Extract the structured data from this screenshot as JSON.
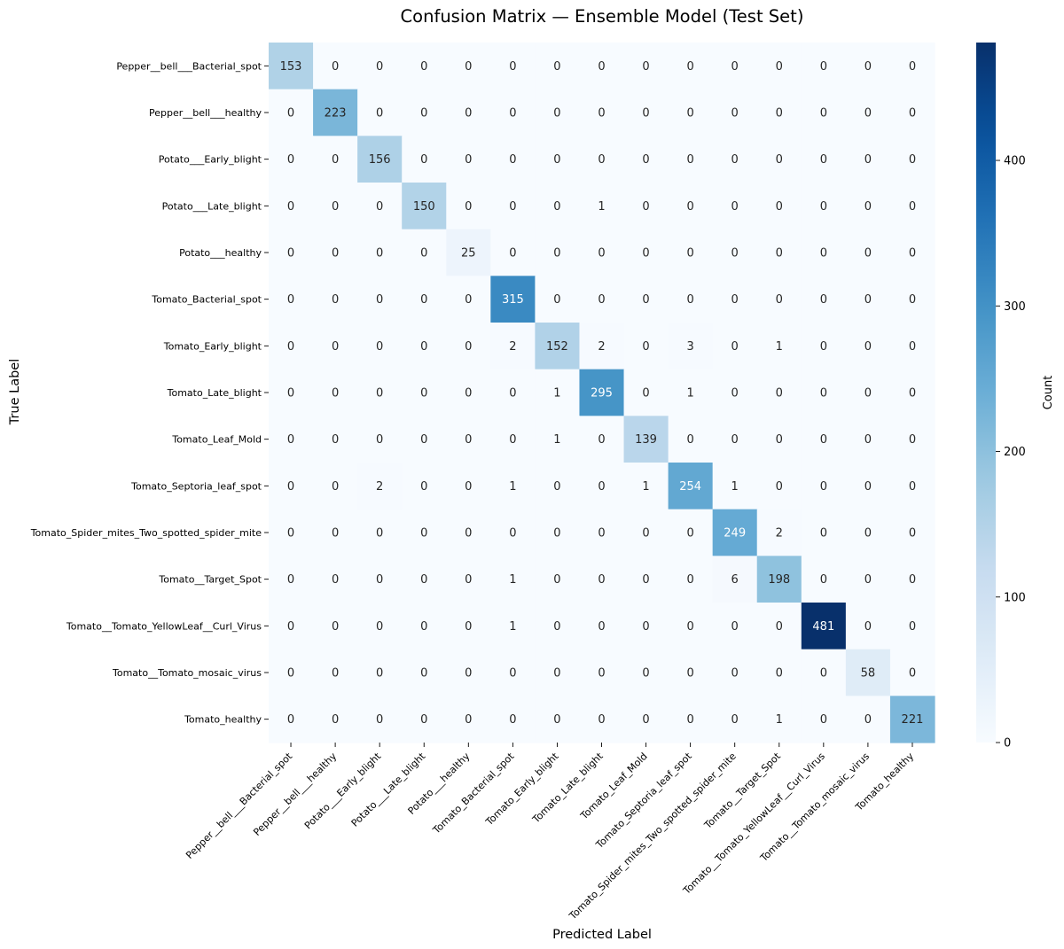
{
  "chart_data": {
    "type": "heatmap",
    "title": "Confusion Matrix — Ensemble Model (Test Set)",
    "xlabel": "Predicted Label",
    "ylabel": "True Label",
    "colorbar_label": "Count",
    "colormap": "Blues",
    "vmin": 0,
    "vmax": 481,
    "colorbar_ticks": [
      0,
      100,
      200,
      300,
      400
    ],
    "labels": [
      "Pepper__bell___Bacterial_spot",
      "Pepper__bell___healthy",
      "Potato___Early_blight",
      "Potato___Late_blight",
      "Potato___healthy",
      "Tomato_Bacterial_spot",
      "Tomato_Early_blight",
      "Tomato_Late_blight",
      "Tomato_Leaf_Mold",
      "Tomato_Septoria_leaf_spot",
      "Tomato_Spider_mites_Two_spotted_spider_mite",
      "Tomato__Target_Spot",
      "Tomato__Tomato_YellowLeaf__Curl_Virus",
      "Tomato__Tomato_mosaic_virus",
      "Tomato_healthy"
    ],
    "matrix": [
      [
        153,
        0,
        0,
        0,
        0,
        0,
        0,
        0,
        0,
        0,
        0,
        0,
        0,
        0,
        0
      ],
      [
        0,
        223,
        0,
        0,
        0,
        0,
        0,
        0,
        0,
        0,
        0,
        0,
        0,
        0,
        0
      ],
      [
        0,
        0,
        156,
        0,
        0,
        0,
        0,
        0,
        0,
        0,
        0,
        0,
        0,
        0,
        0
      ],
      [
        0,
        0,
        0,
        150,
        0,
        0,
        0,
        1,
        0,
        0,
        0,
        0,
        0,
        0,
        0
      ],
      [
        0,
        0,
        0,
        0,
        25,
        0,
        0,
        0,
        0,
        0,
        0,
        0,
        0,
        0,
        0
      ],
      [
        0,
        0,
        0,
        0,
        0,
        315,
        0,
        0,
        0,
        0,
        0,
        0,
        0,
        0,
        0
      ],
      [
        0,
        0,
        0,
        0,
        0,
        2,
        152,
        2,
        0,
        3,
        0,
        1,
        0,
        0,
        0
      ],
      [
        0,
        0,
        0,
        0,
        0,
        0,
        1,
        295,
        0,
        1,
        0,
        0,
        0,
        0,
        0
      ],
      [
        0,
        0,
        0,
        0,
        0,
        0,
        1,
        0,
        139,
        0,
        0,
        0,
        0,
        0,
        0
      ],
      [
        0,
        0,
        2,
        0,
        0,
        1,
        0,
        0,
        1,
        254,
        1,
        0,
        0,
        0,
        0
      ],
      [
        0,
        0,
        0,
        0,
        0,
        0,
        0,
        0,
        0,
        0,
        249,
        2,
        0,
        0,
        0
      ],
      [
        0,
        0,
        0,
        0,
        0,
        1,
        0,
        0,
        0,
        0,
        6,
        198,
        0,
        0,
        0
      ],
      [
        0,
        0,
        0,
        0,
        0,
        1,
        0,
        0,
        0,
        0,
        0,
        0,
        481,
        0,
        0
      ],
      [
        0,
        0,
        0,
        0,
        0,
        0,
        0,
        0,
        0,
        0,
        0,
        0,
        0,
        58,
        0
      ],
      [
        0,
        0,
        0,
        0,
        0,
        0,
        0,
        0,
        0,
        0,
        0,
        1,
        0,
        0,
        221
      ]
    ]
  }
}
